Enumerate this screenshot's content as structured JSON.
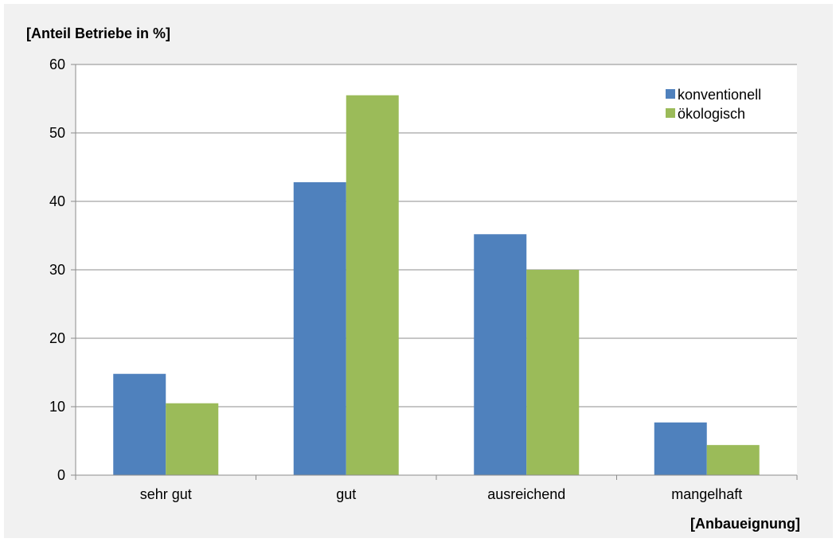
{
  "chart_data": {
    "type": "bar",
    "ylabel": "[Anteil Betriebe in %]",
    "xlabel": "[Anbaueignung]",
    "categories": [
      "sehr gut",
      "gut",
      "ausreichend",
      "mangelhaft"
    ],
    "series": [
      {
        "name": "konventionell",
        "color": "#4f81bd",
        "values": [
          14.8,
          42.8,
          35.2,
          7.7
        ]
      },
      {
        "name": "ökologisch",
        "color": "#9bbb59",
        "values": [
          10.5,
          55.5,
          30.0,
          4.4
        ]
      }
    ],
    "ylim": [
      0,
      60
    ],
    "yticks": [
      0,
      10,
      20,
      30,
      40,
      50,
      60
    ],
    "grid": true,
    "legend_position": "top-right"
  }
}
